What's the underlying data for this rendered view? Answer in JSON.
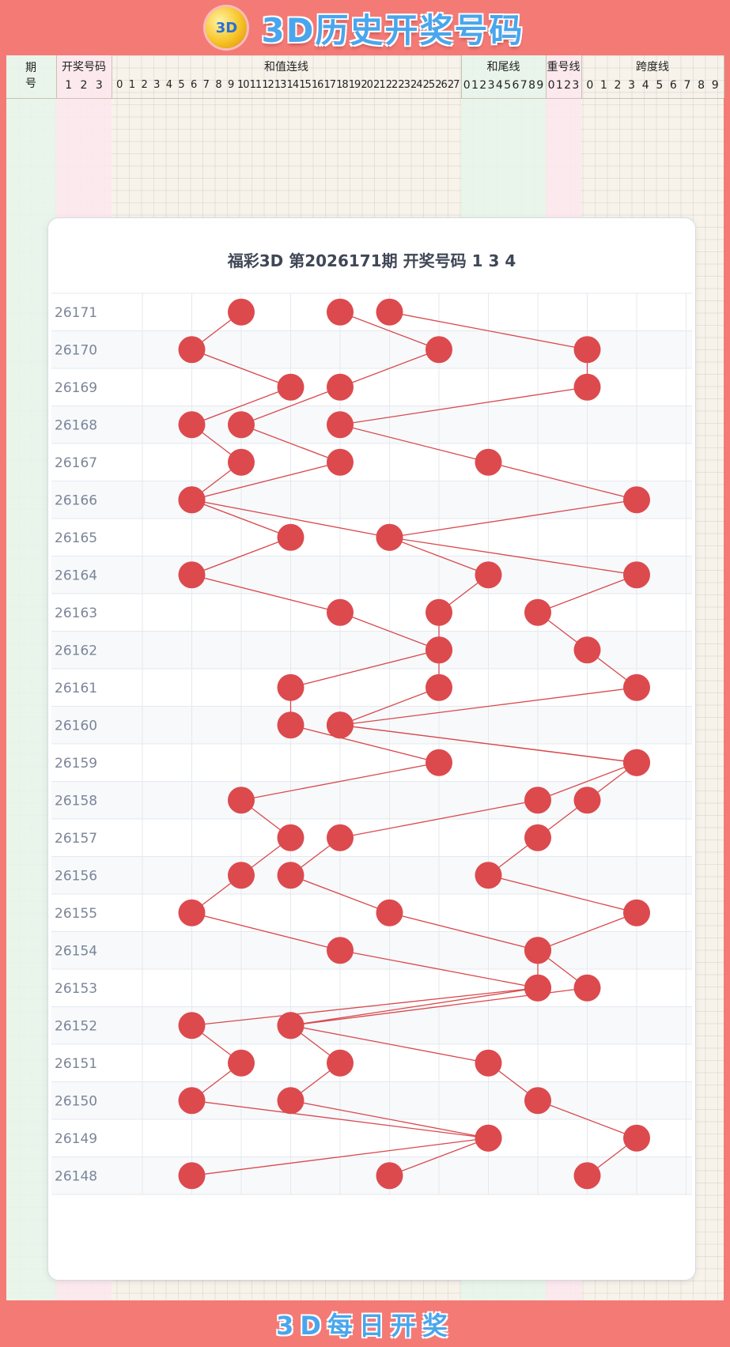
{
  "header": {
    "title": "3D历史开奖号码",
    "logo_text": "3D"
  },
  "table_header": {
    "period_label": "期号",
    "groups": [
      {
        "label": "开奖号码",
        "digits": [
          "1",
          "2",
          "3"
        ]
      },
      {
        "label": "和值连线",
        "digits": [
          "0",
          "1",
          "2",
          "3",
          "4",
          "5",
          "6",
          "7",
          "8",
          "9",
          "10",
          "11",
          "12",
          "13",
          "14",
          "15",
          "16",
          "17",
          "18",
          "19",
          "20",
          "21",
          "22",
          "23",
          "24",
          "25",
          "26",
          "27"
        ]
      },
      {
        "label": "和尾线",
        "digits": [
          "0",
          "1",
          "2",
          "3",
          "4",
          "5",
          "6",
          "7",
          "8",
          "9"
        ]
      },
      {
        "label": "重号线",
        "digits": [
          "0",
          "1",
          "2",
          "3"
        ]
      },
      {
        "label": "跨度线",
        "digits": [
          "0",
          "1",
          "2",
          "3",
          "4",
          "5",
          "6",
          "7",
          "8",
          "9"
        ]
      }
    ]
  },
  "chart_data": {
    "type": "scatter",
    "title": "福彩3D 第2026171期  开奖号码 1 3 4",
    "x_digits": [
      0,
      1,
      2,
      3,
      4,
      5,
      6,
      7,
      8,
      9
    ],
    "grid": true,
    "draws": [
      {
        "period": "26171",
        "numbers": [
          1,
          3,
          4
        ]
      },
      {
        "period": "26170",
        "numbers": [
          0,
          5,
          8
        ]
      },
      {
        "period": "26169",
        "numbers": [
          2,
          3,
          8
        ]
      },
      {
        "period": "26168",
        "numbers": [
          0,
          1,
          3
        ]
      },
      {
        "period": "26167",
        "numbers": [
          1,
          3,
          6
        ]
      },
      {
        "period": "26166",
        "numbers": [
          0,
          0,
          9
        ]
      },
      {
        "period": "26165",
        "numbers": [
          2,
          4,
          4
        ]
      },
      {
        "period": "26164",
        "numbers": [
          0,
          6,
          9
        ]
      },
      {
        "period": "26163",
        "numbers": [
          3,
          5,
          7
        ]
      },
      {
        "period": "26162",
        "numbers": [
          5,
          5,
          8
        ]
      },
      {
        "period": "26161",
        "numbers": [
          2,
          5,
          9
        ]
      },
      {
        "period": "26160",
        "numbers": [
          2,
          3,
          3
        ]
      },
      {
        "period": "26159",
        "numbers": [
          5,
          9,
          9
        ]
      },
      {
        "period": "26158",
        "numbers": [
          1,
          7,
          8
        ]
      },
      {
        "period": "26157",
        "numbers": [
          2,
          3,
          7
        ]
      },
      {
        "period": "26156",
        "numbers": [
          1,
          2,
          6
        ]
      },
      {
        "period": "26155",
        "numbers": [
          0,
          4,
          9
        ]
      },
      {
        "period": "26154",
        "numbers": [
          3,
          7,
          7
        ]
      },
      {
        "period": "26153",
        "numbers": [
          7,
          7,
          8
        ]
      },
      {
        "period": "26152",
        "numbers": [
          0,
          2,
          2
        ]
      },
      {
        "period": "26151",
        "numbers": [
          1,
          3,
          6
        ]
      },
      {
        "period": "26150",
        "numbers": [
          0,
          2,
          7
        ]
      },
      {
        "period": "26149",
        "numbers": [
          6,
          6,
          9
        ]
      },
      {
        "period": "26148",
        "numbers": [
          0,
          4,
          8
        ]
      }
    ]
  },
  "colors": {
    "ball": "#dc4a4e",
    "line": "#d9484c",
    "band_pink": "#fde6ee",
    "band_green": "#e6f4ea",
    "stripe": "#f7f9fb"
  },
  "footer": {
    "text": "3D每日开奖"
  }
}
